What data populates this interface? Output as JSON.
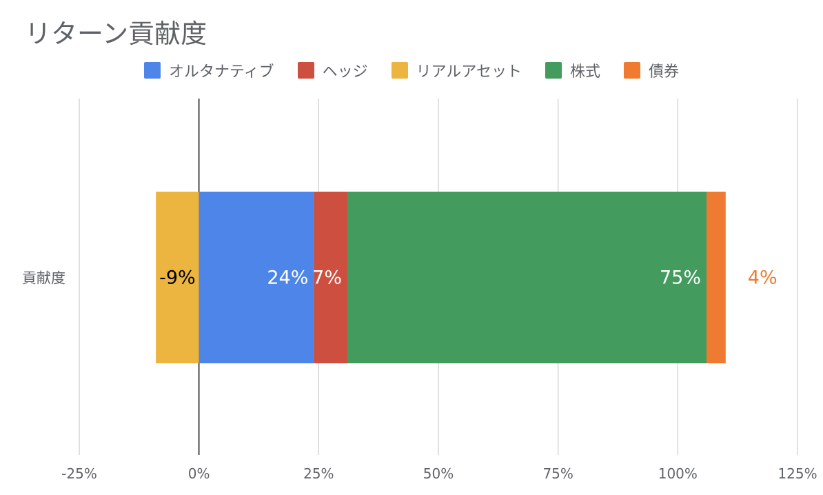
{
  "chart_data": {
    "type": "bar",
    "orientation": "horizontal",
    "stacked": true,
    "title": "リターン貢献度",
    "categories": [
      "貢献度"
    ],
    "series": [
      {
        "name": "オルタナティブ",
        "values": [
          24
        ],
        "color": "#4e85e8",
        "label": "24%",
        "label_color": "#ffffff"
      },
      {
        "name": "ヘッジ",
        "values": [
          7
        ],
        "color": "#cc4f40",
        "label": "7%",
        "label_color": "#ffffff"
      },
      {
        "name": "リアルアセット",
        "values": [
          -9
        ],
        "color": "#ebb53f",
        "label": "-9%",
        "label_color": "#000000"
      },
      {
        "name": "株式",
        "values": [
          75
        ],
        "color": "#439b5e",
        "label": "75%",
        "label_color": "#ffffff"
      },
      {
        "name": "債券",
        "values": [
          4
        ],
        "color": "#ee7b31",
        "label": "4%",
        "label_color": "#ee7b31"
      }
    ],
    "xlim": [
      -25,
      125
    ],
    "xticks": [
      -25,
      0,
      25,
      50,
      75,
      100,
      125
    ],
    "xtick_labels": [
      "-25%",
      "0%",
      "25%",
      "50%",
      "75%",
      "100%",
      "125%"
    ],
    "grid": true,
    "legend_position": "top"
  }
}
